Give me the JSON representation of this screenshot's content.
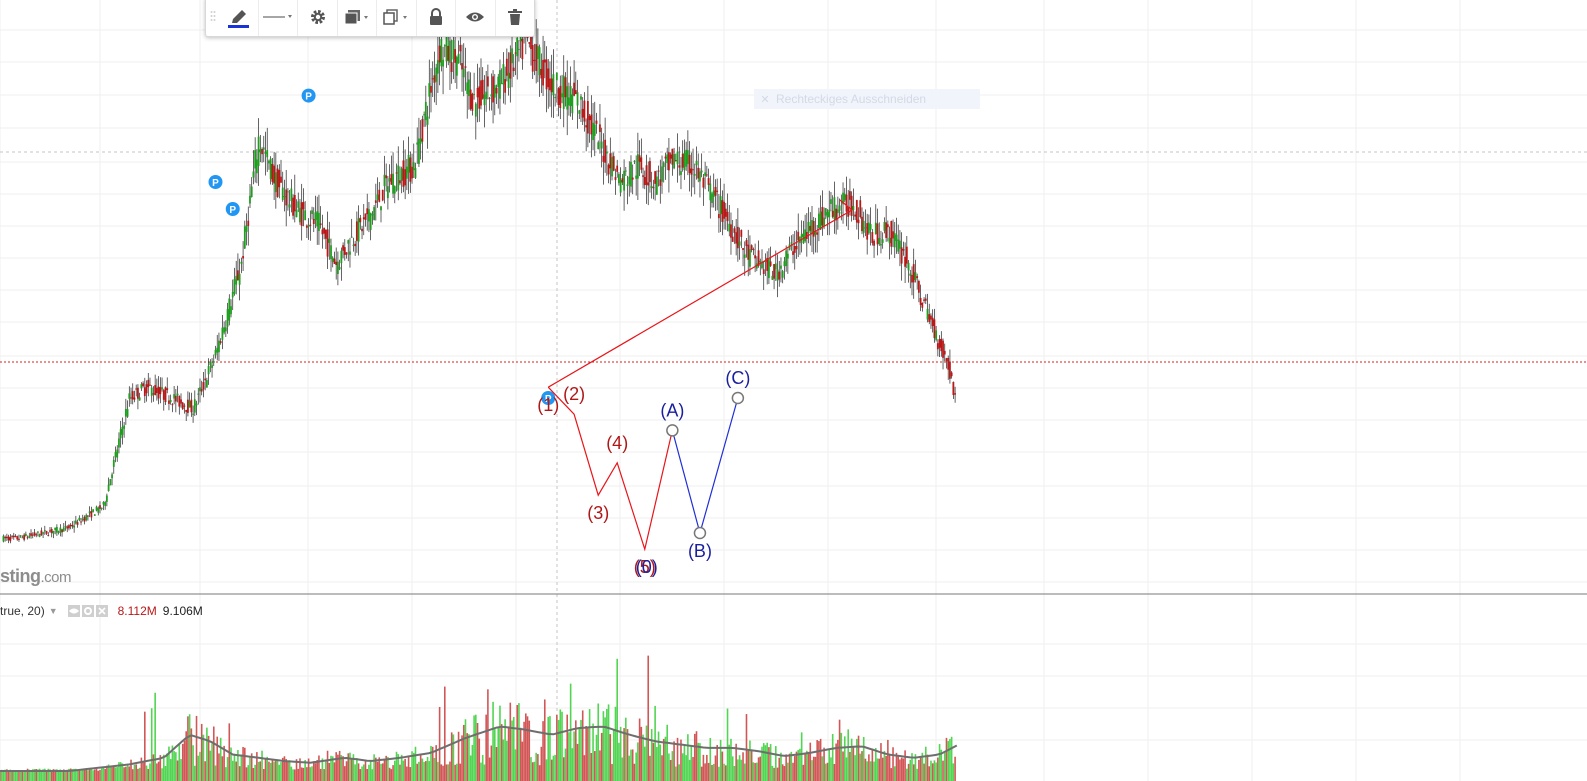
{
  "toolbar": {
    "items": [
      "drag-handle",
      "pencil-icon",
      "line-style",
      "gear-icon",
      "layers-icon",
      "clone-icon",
      "lock-icon",
      "eye-icon",
      "trash-icon"
    ],
    "active_color": "#1a33d6"
  },
  "tooltip": {
    "text": "Rechteckiges Ausschneiden"
  },
  "watermark": {
    "main": "sting",
    "suffix": ".com"
  },
  "volume_legend": {
    "name": "true, 20)",
    "value_down": "8.112M",
    "value_ma": "9.106M"
  },
  "wave_labels": {
    "impulse": [
      "(1)",
      "(2)",
      "(3)",
      "(4)",
      "(5)"
    ],
    "corrective": [
      "(A)",
      "(B)",
      "(C)"
    ],
    "overlap": "(0)"
  },
  "markers": {
    "pivot_label": "P"
  },
  "colors": {
    "up_candle": "#1f9e1f",
    "down_candle": "#b81818",
    "impulse_wave": "#e8151a",
    "impulse_label": "#b01818",
    "corrective_wave": "#1f2fd6",
    "corrective_label": "#1a1f9e",
    "marker_blue": "#2196f3",
    "price_line": "#d42020",
    "volume_up": "#52d552",
    "volume_down": "#d25656",
    "volume_ma": "#6e6e6e"
  },
  "chart_data": {
    "type": "candlestick",
    "title": "",
    "xlabel": "",
    "ylabel": "",
    "grid": true,
    "close_path": [
      [
        0,
        0.04
      ],
      [
        10,
        0.04
      ],
      [
        25,
        0.05
      ],
      [
        40,
        0.06
      ],
      [
        60,
        0.1
      ],
      [
        75,
        0.3
      ],
      [
        85,
        0.32
      ],
      [
        100,
        0.3
      ],
      [
        112,
        0.28
      ],
      [
        125,
        0.38
      ],
      [
        140,
        0.55
      ],
      [
        150,
        0.78
      ],
      [
        160,
        0.7
      ],
      [
        172,
        0.65
      ],
      [
        185,
        0.62
      ],
      [
        195,
        0.55
      ],
      [
        205,
        0.6
      ],
      [
        215,
        0.64
      ],
      [
        225,
        0.7
      ],
      [
        240,
        0.73
      ],
      [
        255,
        0.95
      ],
      [
        265,
        0.93
      ],
      [
        275,
        0.85
      ],
      [
        290,
        0.88
      ],
      [
        305,
        0.96
      ],
      [
        320,
        0.88
      ],
      [
        335,
        0.85
      ],
      [
        350,
        0.76
      ],
      [
        360,
        0.7
      ],
      [
        370,
        0.73
      ],
      [
        380,
        0.7
      ],
      [
        390,
        0.74
      ],
      [
        402,
        0.73
      ],
      [
        412,
        0.68
      ],
      [
        422,
        0.63
      ],
      [
        432,
        0.57
      ],
      [
        440,
        0.55
      ],
      [
        450,
        0.53
      ],
      [
        460,
        0.58
      ],
      [
        472,
        0.62
      ],
      [
        482,
        0.65
      ],
      [
        495,
        0.66
      ],
      [
        505,
        0.6
      ],
      [
        515,
        0.61
      ],
      [
        525,
        0.56
      ],
      [
        535,
        0.48
      ],
      [
        550,
        0.36
      ],
      [
        555,
        0.29
      ]
    ],
    "volume_ma_path": [
      [
        0,
        0.0
      ],
      [
        40,
        0.0
      ],
      [
        75,
        0.04
      ],
      [
        95,
        0.08
      ],
      [
        110,
        0.22
      ],
      [
        122,
        0.18
      ],
      [
        135,
        0.1
      ],
      [
        150,
        0.08
      ],
      [
        165,
        0.06
      ],
      [
        180,
        0.05
      ],
      [
        200,
        0.08
      ],
      [
        215,
        0.06
      ],
      [
        232,
        0.08
      ],
      [
        250,
        0.11
      ],
      [
        270,
        0.2
      ],
      [
        290,
        0.27
      ],
      [
        305,
        0.25
      ],
      [
        320,
        0.22
      ],
      [
        335,
        0.26
      ],
      [
        350,
        0.27
      ],
      [
        365,
        0.22
      ],
      [
        380,
        0.18
      ],
      [
        395,
        0.16
      ],
      [
        410,
        0.14
      ],
      [
        425,
        0.14
      ],
      [
        440,
        0.12
      ],
      [
        455,
        0.09
      ],
      [
        470,
        0.11
      ],
      [
        485,
        0.14
      ],
      [
        500,
        0.15
      ],
      [
        515,
        0.1
      ],
      [
        530,
        0.08
      ],
      [
        545,
        0.1
      ],
      [
        556,
        0.16
      ]
    ],
    "markers_at": [
      [
        125,
        0.7
      ],
      [
        135,
        0.65
      ],
      [
        179,
        0.86
      ],
      [
        318,
        0.3
      ]
    ],
    "wave_points": [
      [
        318,
        0.32
      ],
      [
        333,
        0.27
      ],
      [
        347,
        0.12
      ],
      [
        358,
        0.18
      ],
      [
        374,
        0.02
      ],
      [
        390,
        0.24
      ],
      [
        406,
        0.05
      ],
      [
        428,
        0.3
      ]
    ]
  }
}
